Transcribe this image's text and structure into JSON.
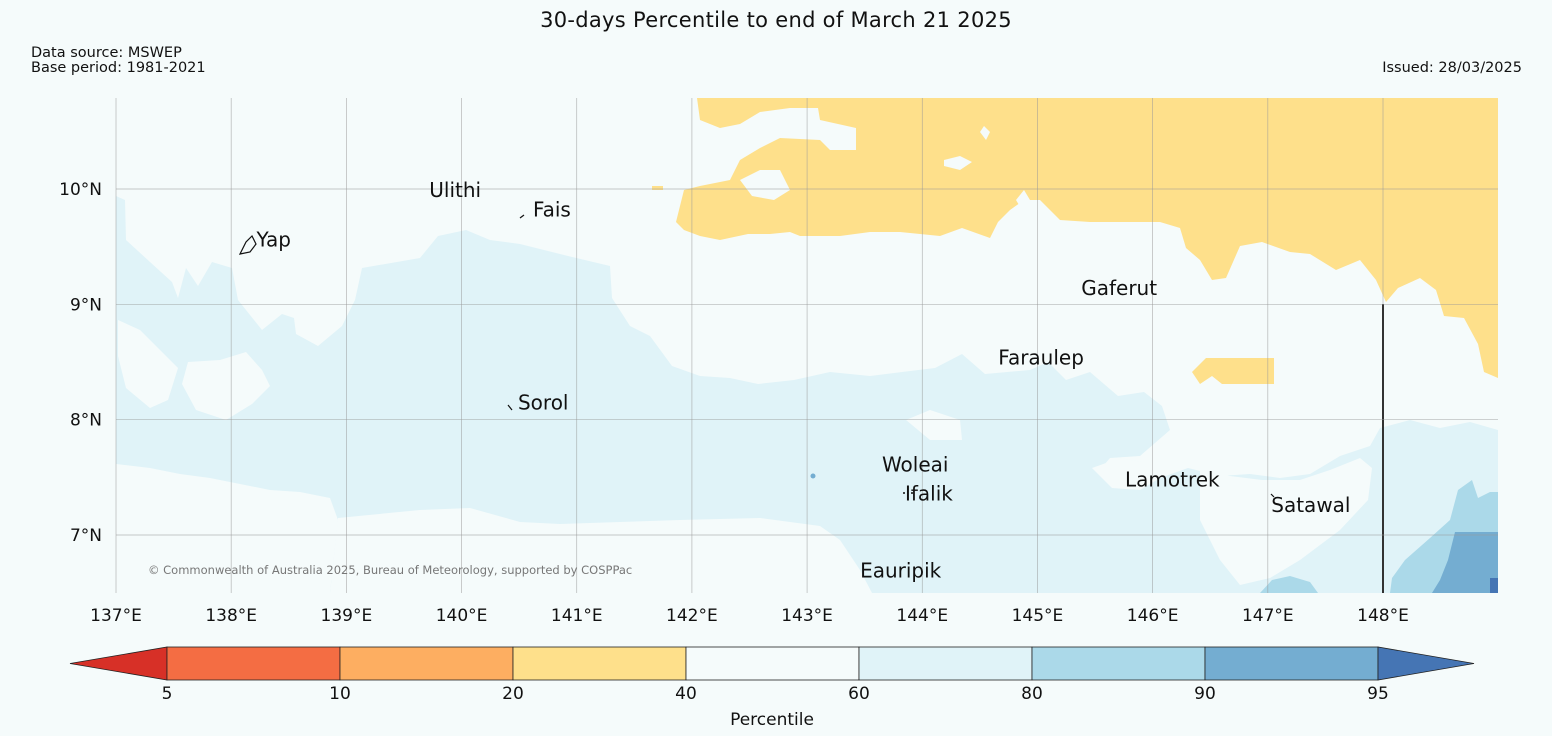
{
  "title": "30-days Percentile to end of March 21 2025",
  "data_source": "Data source: MSWEP",
  "base_period": "Base period: 1981-2021",
  "issued": "Issued: 28/03/2025",
  "copyright": "© Commonwealth of Australia 2025, Bureau of Meteorology, supported by COSPPac",
  "map": {
    "lon_range": [
      137.0,
      149.0
    ],
    "lat_range": [
      6.5,
      10.8
    ],
    "lon_ticks": [
      "137°E",
      "138°E",
      "139°E",
      "140°E",
      "141°E",
      "142°E",
      "143°E",
      "144°E",
      "145°E",
      "146°E",
      "147°E",
      "148°E"
    ],
    "lat_ticks": [
      "7°N",
      "8°N",
      "9°N",
      "10°N"
    ],
    "places": [
      {
        "name": "Yap",
        "lon": 138.22,
        "lat": 9.5
      },
      {
        "name": "Ulithi",
        "lon": 139.72,
        "lat": 9.93
      },
      {
        "name": "Fais",
        "lon": 140.62,
        "lat": 9.76
      },
      {
        "name": "Sorol",
        "lon": 140.49,
        "lat": 8.09
      },
      {
        "name": "Gaferut",
        "lon": 145.38,
        "lat": 9.08
      },
      {
        "name": "Faraulep",
        "lon": 144.66,
        "lat": 8.48
      },
      {
        "name": "Woleai",
        "lon": 143.65,
        "lat": 7.55
      },
      {
        "name": "Ifalik",
        "lon": 143.85,
        "lat": 7.3
      },
      {
        "name": "Lamotrek",
        "lon": 145.76,
        "lat": 7.42
      },
      {
        "name": "Satawal",
        "lon": 147.03,
        "lat": 7.2
      },
      {
        "name": "Eauripik",
        "lon": 143.46,
        "lat": 6.63
      }
    ]
  },
  "colorbar": {
    "title": "Percentile",
    "ticks": [
      "5",
      "10",
      "20",
      "40",
      "60",
      "80",
      "90",
      "95"
    ],
    "colors": [
      "#d73027",
      "#f46d43",
      "#fdae61",
      "#fee08b",
      "#f5fbfb",
      "#e0f3f8",
      "#abd9e9",
      "#74add1",
      "#4575b4"
    ]
  }
}
